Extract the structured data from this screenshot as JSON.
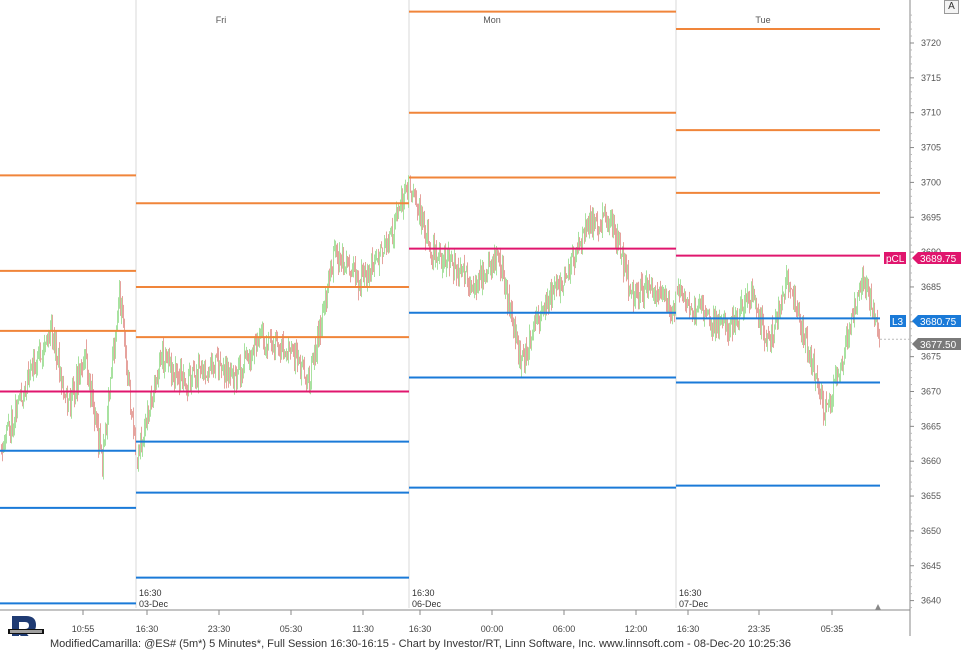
{
  "status": {
    "text": "ModifiedCamarilla: @ES# (5m*) 5 Minutes*, Full Session 16:30-16:15 - Chart by Investor/RT, Linn Software, Inc. www.linnsoft.com - 08-Dec-20 10:25:36"
  },
  "logo_icon": "investor-rt-logo-icon",
  "corner_button_label": "A",
  "colors": {
    "resistance": "#f0853a",
    "pivot": "#e0166e",
    "support": "#1a7ad8",
    "up_bar": "#a8e2a0",
    "down_bar": "#e6a39e",
    "session_divider": "#d9d9d9",
    "axis": "#888888",
    "last_price_bg": "#7a7a7a"
  },
  "chart_data": {
    "type": "line",
    "instrument": "@ES# (5m*)",
    "y_axis": {
      "min": 3637,
      "max": 3725,
      "ticks": [
        3640,
        3645,
        3650,
        3655,
        3660,
        3665,
        3670,
        3675,
        3680,
        3685,
        3690,
        3695,
        3700,
        3705,
        3710,
        3715,
        3720
      ]
    },
    "x_ticks": [
      "10:55",
      "16:30",
      "23:30",
      "05:30",
      "11:30",
      "16:30",
      "00:00",
      "06:00",
      "12:00",
      "16:30",
      "23:35",
      "05:35"
    ],
    "day_labels": [
      "Fri",
      "Mon",
      "Tue"
    ],
    "session_dates": [
      {
        "time": "16:30",
        "date": "03-Dec"
      },
      {
        "time": "16:30",
        "date": "06-Dec"
      },
      {
        "time": "16:30",
        "date": "07-Dec"
      }
    ],
    "sessions": [
      {
        "seed": 11,
        "path": [
          3662,
          3668,
          3674,
          3679,
          3668,
          3675,
          3660,
          3684,
          3660
        ],
        "levels": {
          "resistance": [
            3701,
            3687.3,
            3678.7
          ],
          "pivot": 3670,
          "support": [
            3661.5,
            3653.3,
            3639.6
          ]
        }
      },
      {
        "seed": 23,
        "path": [
          3660,
          3675,
          3671,
          3674,
          3672,
          3678,
          3676,
          3672,
          3690,
          3686,
          3690,
          3700
        ],
        "levels": {
          "resistance": [
            3697,
            3685,
            3677.8
          ],
          "pivot": 3670,
          "support": [
            3662.8,
            3655.5,
            3643.3
          ]
        }
      },
      {
        "seed": 37,
        "path": [
          3700,
          3690,
          3688,
          3685,
          3690,
          3674,
          3682,
          3686,
          3694,
          3695,
          3684,
          3685,
          3682
        ],
        "levels": {
          "resistance": [
            3724.5,
            3710,
            3700.7
          ],
          "pivot": 3690.5,
          "support": [
            3681.3,
            3672,
            3656.2
          ]
        }
      },
      {
        "seed": 53,
        "path": [
          3685,
          3682,
          3680,
          3679,
          3684,
          3677,
          3686,
          3677,
          3667,
          3675,
          3687,
          3677.5
        ],
        "levels": {
          "resistance": [
            3722,
            3707.5,
            3698.5
          ],
          "pivot": 3689.5,
          "support": [
            3680.5,
            3671.3,
            3656.5
          ]
        }
      }
    ],
    "last_price": 3677.5,
    "price_labels": [
      {
        "tag": "pCL",
        "value": "3689.75",
        "color": "#e0166e"
      },
      {
        "tag": "L3",
        "value": "3680.75",
        "color": "#1a7ad8"
      },
      {
        "tag": "",
        "value": "3677.50",
        "color": "#7a7a7a"
      }
    ]
  }
}
